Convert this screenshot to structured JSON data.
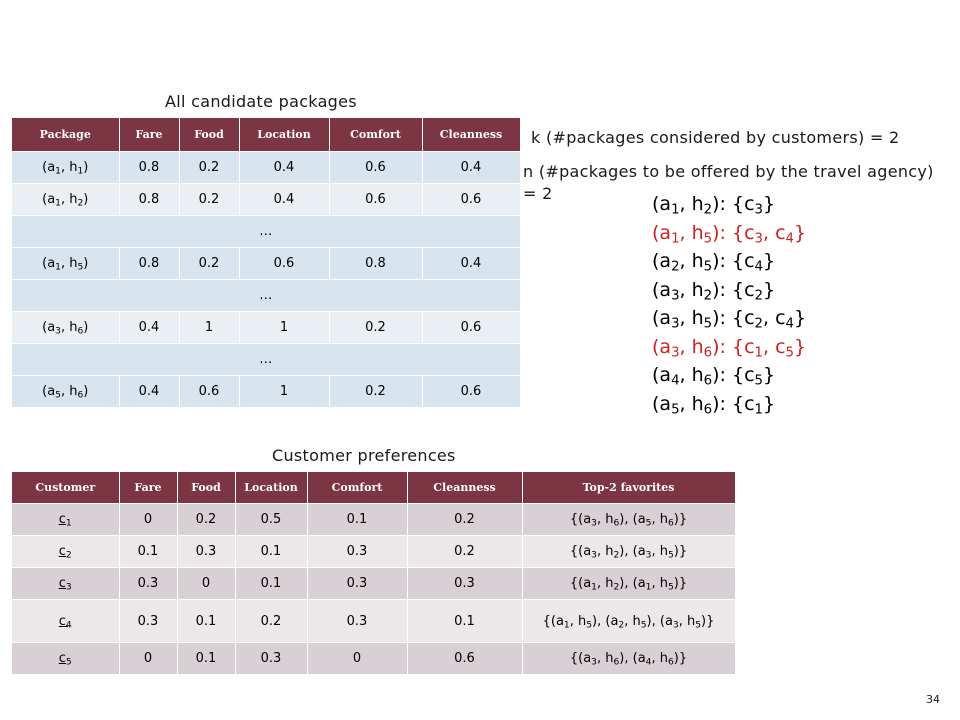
{
  "captions": {
    "packages": "All candidate packages",
    "preferences": "Customer preferences"
  },
  "params": {
    "k_text": "k (#packages considered by customers) = 2",
    "n_text_line1": "n (#packages to be offered by the travel agency)",
    "n_text_line2": "= 2"
  },
  "packages_table": {
    "headers": [
      "Package",
      "Fare",
      "Food",
      "Location",
      "Comfort",
      "Cleanness"
    ],
    "rows": [
      {
        "type": "data",
        "pkg": [
          "a",
          "1",
          "h",
          "1"
        ],
        "values": [
          "0.8",
          "0.2",
          "0.4",
          "0.6",
          "0.4"
        ]
      },
      {
        "type": "data",
        "pkg": [
          "a",
          "1",
          "h",
          "2"
        ],
        "values": [
          "0.8",
          "0.2",
          "0.4",
          "0.6",
          "0.6"
        ]
      },
      {
        "type": "ellipsis",
        "text": "…"
      },
      {
        "type": "data",
        "pkg": [
          "a",
          "1",
          "h",
          "5"
        ],
        "values": [
          "0.8",
          "0.2",
          "0.6",
          "0.8",
          "0.4"
        ]
      },
      {
        "type": "ellipsis",
        "text": "…"
      },
      {
        "type": "data",
        "pkg": [
          "a",
          "3",
          "h",
          "6"
        ],
        "values": [
          "0.4",
          "1",
          "1",
          "0.2",
          "0.6"
        ]
      },
      {
        "type": "ellipsis",
        "text": "…"
      },
      {
        "type": "data",
        "pkg": [
          "a",
          "5",
          "h",
          "6"
        ],
        "values": [
          "0.4",
          "0.6",
          "1",
          "0.2",
          "0.6"
        ]
      }
    ]
  },
  "preferences_table": {
    "headers": [
      "Customer",
      "Fare",
      "Food",
      "Location",
      "Comfort",
      "Cleanness",
      "Top-2 favorites"
    ],
    "rows": [
      {
        "cust": [
          "c",
          "1"
        ],
        "values": [
          "0",
          "0.2",
          "0.5",
          "0.1",
          "0.2"
        ],
        "fav": [
          [
            "a",
            "3",
            "h",
            "6"
          ],
          [
            "a",
            "5",
            "h",
            "6"
          ]
        ]
      },
      {
        "cust": [
          "c",
          "2"
        ],
        "values": [
          "0.1",
          "0.3",
          "0.1",
          "0.3",
          "0.2"
        ],
        "fav": [
          [
            "a",
            "3",
            "h",
            "2"
          ],
          [
            "a",
            "3",
            "h",
            "5"
          ]
        ]
      },
      {
        "cust": [
          "c",
          "3"
        ],
        "values": [
          "0.3",
          "0",
          "0.1",
          "0.3",
          "0.3"
        ],
        "fav": [
          [
            "a",
            "1",
            "h",
            "2"
          ],
          [
            "a",
            "1",
            "h",
            "5"
          ]
        ]
      },
      {
        "cust": [
          "c",
          "4"
        ],
        "values": [
          "0.3",
          "0.1",
          "0.2",
          "0.3",
          "0.1"
        ],
        "fav": [
          [
            "a",
            "1",
            "h",
            "5"
          ],
          [
            "a",
            "2",
            "h",
            "5"
          ],
          [
            "a",
            "3",
            "h",
            "5"
          ]
        ]
      },
      {
        "cust": [
          "c",
          "5"
        ],
        "values": [
          "0",
          "0.1",
          "0.3",
          "0",
          "0.6"
        ],
        "fav": [
          [
            "a",
            "3",
            "h",
            "6"
          ],
          [
            "a",
            "4",
            "h",
            "6"
          ]
        ]
      }
    ]
  },
  "selection_list": [
    {
      "pkg": [
        "a",
        "1",
        "h",
        "2"
      ],
      "customers": [
        "3"
      ],
      "highlight": false
    },
    {
      "pkg": [
        "a",
        "1",
        "h",
        "5"
      ],
      "customers": [
        "3",
        "4"
      ],
      "highlight": true
    },
    {
      "pkg": [
        "a",
        "2",
        "h",
        "5"
      ],
      "customers": [
        "4"
      ],
      "highlight": false
    },
    {
      "pkg": [
        "a",
        "3",
        "h",
        "2"
      ],
      "customers": [
        "2"
      ],
      "highlight": false
    },
    {
      "pkg": [
        "a",
        "3",
        "h",
        "5"
      ],
      "customers": [
        "2",
        "4"
      ],
      "highlight": false
    },
    {
      "pkg": [
        "a",
        "3",
        "h",
        "6"
      ],
      "customers": [
        "1",
        "5"
      ],
      "highlight": true
    },
    {
      "pkg": [
        "a",
        "4",
        "h",
        "6"
      ],
      "customers": [
        "5"
      ],
      "highlight": false
    },
    {
      "pkg": [
        "a",
        "5",
        "h",
        "6"
      ],
      "customers": [
        "1"
      ],
      "highlight": false
    }
  ],
  "colors": {
    "header": "#7b3543",
    "highlight": "#cc2222"
  },
  "page_number": "34"
}
